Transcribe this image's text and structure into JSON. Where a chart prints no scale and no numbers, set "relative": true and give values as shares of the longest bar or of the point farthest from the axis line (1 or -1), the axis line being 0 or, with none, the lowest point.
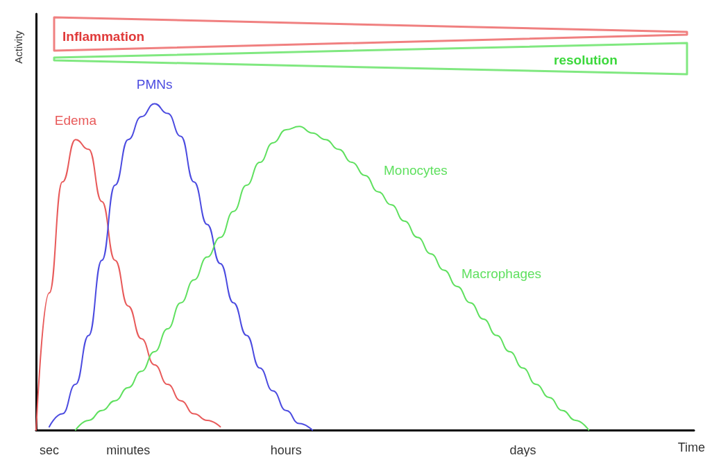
{
  "chart_data": {
    "type": "line",
    "relative": true,
    "ylabel": "Activity",
    "xlabel": "Time",
    "categories": [
      null,
      "sec",
      null,
      null,
      null,
      null,
      null,
      "minutes",
      null,
      null,
      null,
      null,
      null,
      null,
      null,
      null,
      null,
      null,
      null,
      "hours",
      null,
      null,
      null,
      null,
      null,
      null,
      null,
      null,
      null,
      null,
      null,
      null,
      null,
      null,
      null,
      null,
      null,
      "days",
      null,
      null,
      null,
      null,
      null,
      null,
      null,
      null,
      null,
      null,
      null,
      null,
      null
    ],
    "series": [
      {
        "name": "Edema",
        "color": "#e85a5a",
        "values": [
          0,
          0.42,
          0.76,
          0.89,
          0.86,
          0.7,
          0.52,
          0.38,
          0.28,
          0.2,
          0.14,
          0.09,
          0.05,
          0.03,
          0.01,
          null,
          null,
          null,
          null,
          null,
          null,
          null,
          null,
          null,
          null,
          null,
          null,
          null,
          null,
          null,
          null,
          null,
          null,
          null,
          null,
          null,
          null,
          null,
          null,
          null,
          null,
          null,
          null,
          null,
          null,
          null,
          null,
          null,
          null,
          null,
          null
        ]
      },
      {
        "name": "PMNs",
        "color": "#4b4be0",
        "values": [
          null,
          0.01,
          0.05,
          0.14,
          0.29,
          0.52,
          0.75,
          0.89,
          0.96,
          1.0,
          0.97,
          0.9,
          0.76,
          0.63,
          0.51,
          0.39,
          0.29,
          0.19,
          0.12,
          0.06,
          0.02,
          0,
          null,
          null,
          null,
          null,
          null,
          null,
          null,
          null,
          null,
          null,
          null,
          null,
          null,
          null,
          null,
          null,
          null,
          null,
          null,
          null,
          null,
          null,
          null,
          null,
          null,
          null,
          null,
          null,
          null
        ]
      },
      {
        "color": "#5fe05f",
        "values": [
          null,
          null,
          null,
          0,
          0.03,
          0.06,
          0.09,
          0.13,
          0.18,
          0.24,
          0.31,
          0.39,
          0.46,
          0.53,
          0.59,
          0.67,
          0.75,
          0.82,
          0.88,
          0.92,
          0.93,
          0.91,
          0.89,
          0.86,
          0.82,
          0.78,
          0.73,
          0.69,
          0.64,
          0.59,
          0.54,
          0.49,
          0.44,
          0.39,
          0.34,
          0.29,
          0.24,
          0.19,
          0.14,
          0.1,
          0.06,
          0.03,
          0,
          null,
          null,
          null,
          null,
          null,
          null,
          null,
          null
        ]
      }
    ],
    "annotations": [
      "Inflammation",
      "resolution",
      "Monocytes",
      "Macrophages"
    ],
    "grid": false,
    "legend": false,
    "marker": "none",
    "line_style": "solid"
  }
}
